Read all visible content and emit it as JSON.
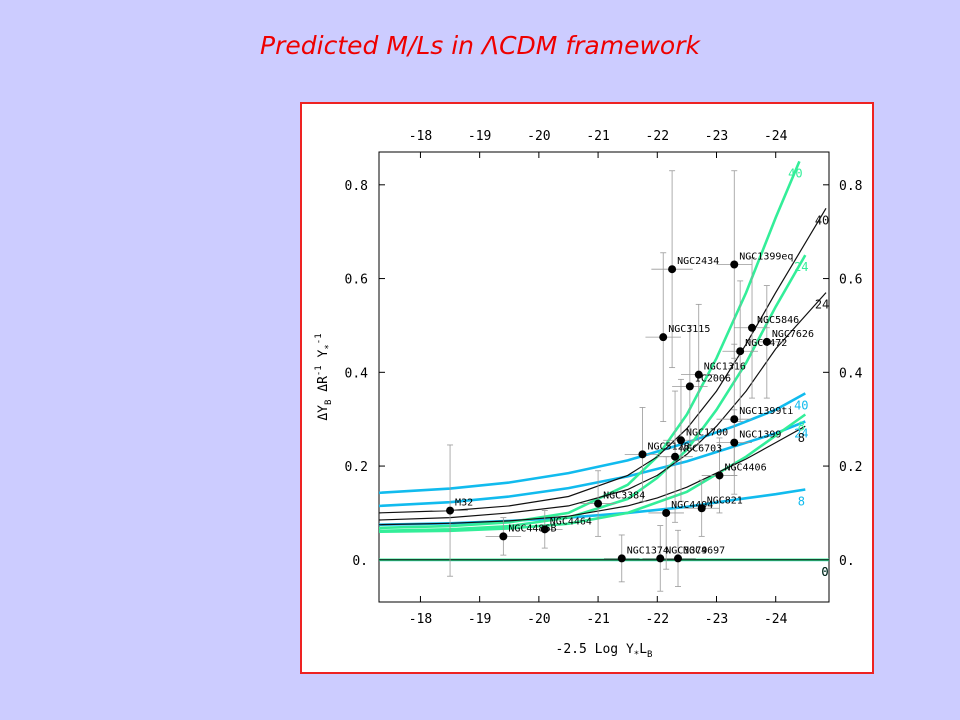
{
  "slide": {
    "title_prefix": "Predicted M/Ls in ",
    "title_symbol": "Λ",
    "title_suffix": "CDM framework"
  },
  "chart_data": {
    "type": "scatter",
    "title": "",
    "xlabel": "-2.5 Log Υ*LB",
    "ylabel": "ΔΥB ΔR⁻¹ Υ*⁻¹",
    "xlim": [
      -17.3,
      -24.9
    ],
    "ylim": [
      -0.09,
      0.87
    ],
    "x_ticks": [
      -18,
      -19,
      -20,
      -21,
      -22,
      -23,
      -24
    ],
    "x_tick_labels": [
      "-18",
      "-19",
      "-20",
      "-21",
      "-22",
      "-23",
      "-24"
    ],
    "y_ticks": [
      0,
      0.2,
      0.4,
      0.6,
      0.8
    ],
    "y_tick_labels": [
      "0.",
      "0.2",
      "0.4",
      "0.6",
      "0.8"
    ],
    "grid": false,
    "colors": {
      "points": "#000000",
      "black_curves": "#111111",
      "green_curves": "#33ee99",
      "blue_curves": "#11bbee",
      "frame": "#ee2222"
    },
    "points": [
      {
        "name": "M32",
        "x": -18.5,
        "y": 0.105,
        "yerr": 0.14,
        "xerr": 0.3
      },
      {
        "name": "NGC4486B",
        "x": -19.4,
        "y": 0.05,
        "yerr": 0.04,
        "xerr": 0.3
      },
      {
        "name": "NGC4464",
        "x": -20.1,
        "y": 0.065,
        "yerr": 0.04,
        "xerr": 0.3
      },
      {
        "name": "NGC3384",
        "x": -21.0,
        "y": 0.12,
        "yerr": 0.07,
        "xerr": 0.3
      },
      {
        "name": "NGC1374",
        "x": -21.4,
        "y": 0.003,
        "yerr": 0.05,
        "xerr": 0.3
      },
      {
        "name": "NGC5128",
        "x": -21.75,
        "y": 0.225,
        "yerr": 0.1,
        "xerr": 0.3
      },
      {
        "name": "NGC3379",
        "x": -22.05,
        "y": 0.003,
        "yerr": 0.07,
        "xerr": 0.3
      },
      {
        "name": "NGC3115",
        "x": -22.1,
        "y": 0.475,
        "yerr": 0.18,
        "xerr": 0.3
      },
      {
        "name": "NGC4494",
        "x": -22.15,
        "y": 0.1,
        "yerr": 0.12,
        "xerr": 0.3
      },
      {
        "name": "NGC2434",
        "x": -22.25,
        "y": 0.62,
        "yerr": 0.21,
        "xerr": 0.35
      },
      {
        "name": "NGC6703",
        "x": -22.3,
        "y": 0.22,
        "yerr": 0.14,
        "xerr": 0.3
      },
      {
        "name": "NGC4697",
        "x": -22.35,
        "y": 0.003,
        "yerr": 0.06,
        "xerr": 0.3
      },
      {
        "name": "NGC1700",
        "x": -22.4,
        "y": 0.255,
        "yerr": 0.13,
        "xerr": 0.3
      },
      {
        "name": "IC2006",
        "x": -22.55,
        "y": 0.37,
        "yerr": 0.13,
        "xerr": 0.3
      },
      {
        "name": "NGC1316",
        "x": -22.7,
        "y": 0.395,
        "yerr": 0.15,
        "xerr": 0.3
      },
      {
        "name": "NGC821",
        "x": -22.75,
        "y": 0.11,
        "yerr": 0.06,
        "xerr": 0.3
      },
      {
        "name": "NGC4406",
        "x": -23.05,
        "y": 0.18,
        "yerr": 0.08,
        "xerr": 0.3
      },
      {
        "name": "NGC1399ti",
        "x": -23.3,
        "y": 0.3,
        "yerr": 0.16,
        "xerr": 0.3
      },
      {
        "name": "NGC1399eq",
        "x": -23.3,
        "y": 0.63,
        "yerr": 0.2,
        "xerr": 0.3
      },
      {
        "name": "NGC1399",
        "x": -23.3,
        "y": 0.25,
        "yerr": 0.07,
        "xerr": 0.3
      },
      {
        "name": "NGC4472",
        "x": -23.4,
        "y": 0.445,
        "yerr": 0.15,
        "xerr": 0.3
      },
      {
        "name": "NGC5846",
        "x": -23.6,
        "y": 0.495,
        "yerr": 0.15,
        "xerr": 0.3
      },
      {
        "name": "NGC7626",
        "x": -23.85,
        "y": 0.465,
        "yerr": 0.12,
        "xerr": 0.3
      }
    ],
    "series": [
      {
        "name": "40",
        "color": "blue",
        "x": [
          -17.3,
          -18.5,
          -19.5,
          -20.5,
          -21.5,
          -22.5,
          -23.3,
          -24.0,
          -24.5
        ],
        "values": [
          0.143,
          0.152,
          0.165,
          0.185,
          0.212,
          0.25,
          0.285,
          0.32,
          0.355
        ]
      },
      {
        "name": "24",
        "color": "blue",
        "x": [
          -17.3,
          -18.5,
          -19.5,
          -20.5,
          -21.5,
          -22.5,
          -23.3,
          -24.0,
          -24.5
        ],
        "values": [
          0.115,
          0.123,
          0.135,
          0.153,
          0.178,
          0.21,
          0.242,
          0.27,
          0.295
        ]
      },
      {
        "name": "8",
        "color": "blue",
        "x": [
          -17.3,
          -18.5,
          -19.5,
          -20.5,
          -21.5,
          -22.5,
          -23.3,
          -24.0,
          -24.5
        ],
        "values": [
          0.075,
          0.078,
          0.083,
          0.09,
          0.1,
          0.113,
          0.128,
          0.14,
          0.15
        ]
      },
      {
        "name": "0",
        "color": "blue",
        "x": [
          -17.3,
          -24.9
        ],
        "values": [
          0.0,
          0.0
        ]
      },
      {
        "name": "40",
        "color": "green",
        "x": [
          -17.3,
          -18.5,
          -19.5,
          -20.5,
          -21.5,
          -22.0,
          -22.5,
          -23.0,
          -23.5,
          -24.0,
          -24.4
        ],
        "values": [
          0.068,
          0.072,
          0.08,
          0.1,
          0.16,
          0.22,
          0.31,
          0.43,
          0.57,
          0.73,
          0.85
        ]
      },
      {
        "name": "24",
        "color": "green",
        "x": [
          -17.3,
          -18.5,
          -19.5,
          -20.5,
          -21.5,
          -22.0,
          -22.5,
          -23.0,
          -23.5,
          -24.0,
          -24.5
        ],
        "values": [
          0.062,
          0.065,
          0.072,
          0.09,
          0.13,
          0.175,
          0.235,
          0.32,
          0.42,
          0.54,
          0.65
        ]
      },
      {
        "name": "8",
        "color": "green",
        "x": [
          -17.3,
          -18.5,
          -19.5,
          -20.5,
          -21.5,
          -22.5,
          -23.5,
          -24.5
        ],
        "values": [
          0.06,
          0.062,
          0.067,
          0.077,
          0.1,
          0.145,
          0.22,
          0.31
        ]
      },
      {
        "name": "0",
        "color": "green",
        "x": [
          -17.3,
          -24.9
        ],
        "values": [
          0.0,
          0.0
        ]
      },
      {
        "name": "40",
        "color": "black",
        "x": [
          -17.3,
          -18.5,
          -19.5,
          -20.5,
          -21.5,
          -22.0,
          -22.5,
          -23.0,
          -23.5,
          -24.0,
          -24.85
        ],
        "values": [
          0.1,
          0.105,
          0.115,
          0.135,
          0.18,
          0.22,
          0.28,
          0.36,
          0.46,
          0.57,
          0.75
        ]
      },
      {
        "name": "24",
        "color": "black",
        "x": [
          -17.3,
          -18.5,
          -19.5,
          -20.5,
          -21.5,
          -22.0,
          -22.5,
          -23.0,
          -23.5,
          -24.0,
          -24.85
        ],
        "values": [
          0.085,
          0.09,
          0.1,
          0.115,
          0.15,
          0.18,
          0.225,
          0.285,
          0.36,
          0.45,
          0.57
        ]
      },
      {
        "name": "8",
        "color": "black",
        "x": [
          -17.3,
          -18.5,
          -19.5,
          -20.5,
          -21.5,
          -22.0,
          -22.5,
          -23.0,
          -23.5,
          -24.0,
          -24.5
        ],
        "values": [
          0.075,
          0.078,
          0.083,
          0.093,
          0.115,
          0.132,
          0.155,
          0.185,
          0.215,
          0.25,
          0.285
        ]
      },
      {
        "name": "0",
        "color": "black",
        "x": [
          -17.3,
          -24.9
        ],
        "values": [
          0.0,
          0.0
        ]
      }
    ]
  }
}
